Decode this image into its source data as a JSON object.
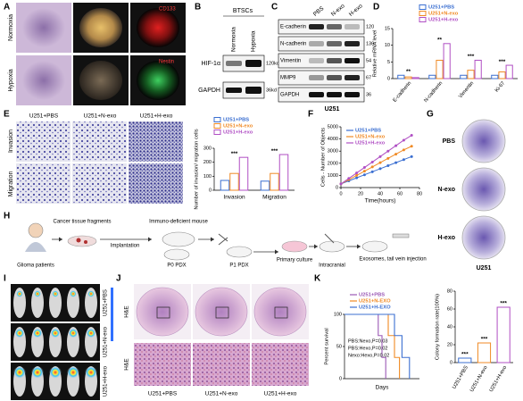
{
  "panel_letters": [
    "A",
    "B",
    "C",
    "D",
    "E",
    "F",
    "G",
    "H",
    "I",
    "J",
    "K"
  ],
  "A": {
    "rows": [
      "Normoxia",
      "Hypoxia"
    ],
    "stains": [
      "CD133",
      "Nestin"
    ]
  },
  "B": {
    "title": "BTSCs",
    "columns": [
      "Normoxia",
      "Hypoxia"
    ],
    "proteins": [
      "HIF-1α",
      "GAPDH"
    ],
    "sizes": [
      "120kd",
      "36kd"
    ]
  },
  "C": {
    "columns": [
      "PBS",
      "N-exo",
      "H-exo"
    ],
    "proteins": [
      "E-cadherin",
      "N-cadherin",
      "Vimentin",
      "MMP9",
      "GAPDH"
    ],
    "sizes": [
      "120",
      "130",
      "54",
      "67",
      "36"
    ],
    "cell_line": "U251"
  },
  "E": {
    "columns": [
      "U251+PBS",
      "U251+N-exo",
      "U251+H-exo"
    ],
    "rows": [
      "Invasion",
      "Migration"
    ]
  },
  "G": {
    "rows": [
      "PBS",
      "N-exo",
      "H-exo"
    ],
    "cell_line": "U251"
  },
  "H": {
    "steps": [
      "Glioma patients",
      "Cancer tissue fragments",
      "Implantation",
      "Immuno-deficient mouse",
      "P0 PDX",
      "P1 PDX",
      "Primary culture",
      "Intracranial",
      "Exosomes, tail vein injection"
    ]
  },
  "I": {
    "rows": [
      "U251+PBS",
      "U251+N-exo",
      "U251+H-exo"
    ]
  },
  "J": {
    "rows": [
      "H&E",
      "H&E"
    ],
    "columns": [
      "U251+PBS",
      "U251+N-exo",
      "U251+H-exo"
    ]
  },
  "chart_data": [
    {
      "type": "bar",
      "ylabel": "Relative mRNA level",
      "categories": [
        "E-cadherin",
        "N-cadherin",
        "Vimentin",
        "Ki-67"
      ],
      "series": [
        {
          "name": "U251+PBS",
          "color": "#3b6fd1",
          "values": [
            1,
            1,
            1,
            1
          ]
        },
        {
          "name": "U251+N-exo",
          "color": "#f08a24",
          "values": [
            0.5,
            5.5,
            2.5,
            2
          ]
        },
        {
          "name": "U251+H-exo",
          "color": "#b04fc4",
          "values": [
            0.3,
            10.5,
            5.5,
            4
          ]
        }
      ],
      "ylim": [
        0,
        15
      ],
      "yticks": [
        0,
        5,
        10,
        15
      ],
      "significance": [
        "**",
        "**",
        "***",
        "***"
      ]
    },
    {
      "type": "bar",
      "ylabel": "Number of invasion/ migration cells",
      "categories": [
        "Invasion",
        "Migration"
      ],
      "series": [
        {
          "name": "U251+PBS",
          "color": "#3b6fd1",
          "values": [
            70,
            65
          ]
        },
        {
          "name": "U251+N-exo",
          "color": "#f08a24",
          "values": [
            120,
            120
          ]
        },
        {
          "name": "U251+H-exo",
          "color": "#b04fc4",
          "values": [
            235,
            255
          ]
        }
      ],
      "ylim": [
        0,
        300
      ],
      "yticks": [
        0,
        100,
        200,
        300
      ],
      "significance": [
        "***",
        "***"
      ]
    },
    {
      "type": "line",
      "ylabel": "Cells - Number of Objects",
      "xlabel": "Time(hours)",
      "x": [
        0,
        8,
        16,
        24,
        32,
        40,
        48,
        56,
        64,
        72
      ],
      "series": [
        {
          "name": "U251+PBS",
          "color": "#3b6fd1",
          "values": [
            300,
            550,
            800,
            1050,
            1300,
            1550,
            1800,
            2050,
            2300,
            2550
          ]
        },
        {
          "name": "U251+N-exo",
          "color": "#f08a24",
          "values": [
            300,
            650,
            1000,
            1350,
            1700,
            2050,
            2400,
            2750,
            3100,
            3400
          ]
        },
        {
          "name": "U251+H-exo",
          "color": "#b04fc4",
          "values": [
            300,
            750,
            1200,
            1650,
            2100,
            2550,
            3000,
            3450,
            3900,
            4300
          ]
        }
      ],
      "xlim": [
        0,
        80
      ],
      "xticks": [
        0,
        20,
        40,
        60,
        80
      ],
      "ylim": [
        0,
        5000
      ],
      "yticks": [
        0,
        1000,
        2000,
        3000,
        4000,
        5000
      ]
    },
    {
      "type": "step",
      "ylabel": "Percent survival",
      "xlabel": "Days",
      "series": [
        {
          "name": "U251+PBS",
          "color": "#9b59b6",
          "x": [
            0,
            27,
            30,
            33
          ],
          "values": [
            100,
            67,
            33,
            0
          ]
        },
        {
          "name": "U251+N-EXO",
          "color": "#f08a24",
          "x": [
            0,
            35,
            40,
            44
          ],
          "values": [
            100,
            67,
            33,
            0
          ]
        },
        {
          "name": "U251+H-EXO",
          "color": "#3b6fd1",
          "x": [
            0,
            40,
            46,
            52
          ],
          "values": [
            100,
            67,
            33,
            0
          ]
        }
      ],
      "xlim": [
        0,
        60
      ],
      "ylim": [
        0,
        100
      ],
      "yticks": [
        0,
        50,
        100
      ],
      "annotations": [
        "PBS:Nexo,P=0.03",
        "PBS:Hexo,P=0.02",
        "Nexo:Hexo,P=0.02"
      ]
    },
    {
      "type": "bar",
      "ylabel": "Colony formation rate(100%)",
      "categories": [
        "U251+PBS",
        "U251+N-exo",
        "U251+H-exo"
      ],
      "values": [
        5,
        22,
        62
      ],
      "colors": [
        "#3b6fd1",
        "#f08a24",
        "#b04fc4"
      ],
      "ylim": [
        0,
        80
      ],
      "yticks": [
        0,
        20,
        40,
        60,
        80
      ],
      "significance": [
        "***",
        "***",
        "***"
      ]
    }
  ]
}
